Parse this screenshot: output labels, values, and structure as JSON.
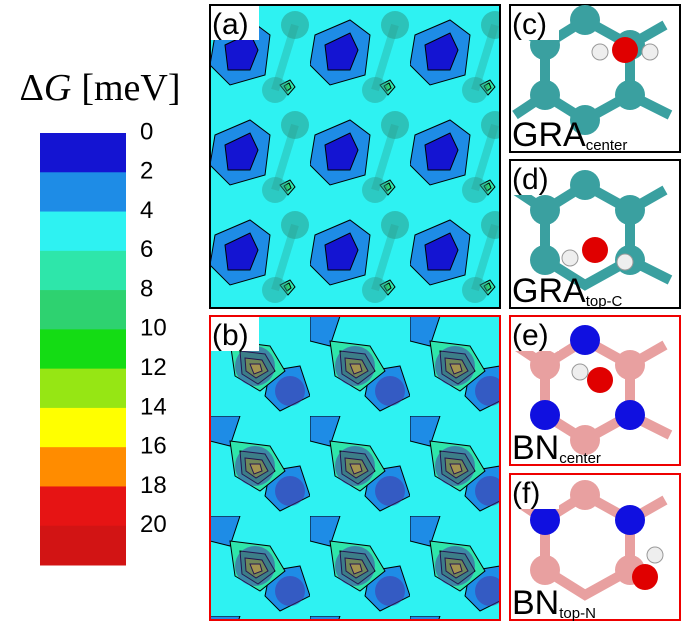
{
  "colorbar": {
    "delta": "Δ",
    "variable": "G",
    "unit": "[meV]",
    "range": [
      0,
      22
    ],
    "ticks": [
      0,
      2,
      4,
      6,
      8,
      10,
      12,
      14,
      16,
      18,
      20
    ],
    "colors": [
      "#1414d2",
      "#1e8ce6",
      "#2ef2f2",
      "#2ee6aa",
      "#2ed270",
      "#14dc14",
      "#96e614",
      "#ffff00",
      "#ff8c00",
      "#e61414",
      "#d21414"
    ]
  },
  "panels": [
    {
      "label": "(a)"
    },
    {
      "label": "(b)"
    },
    {
      "label": "(c)",
      "system": "GRA",
      "site": "center"
    },
    {
      "label": "(d)",
      "system": "GRA",
      "site": "top-C"
    },
    {
      "label": "(e)",
      "system": "BN",
      "site": "center"
    },
    {
      "label": "(f)",
      "system": "BN",
      "site": "top-N"
    }
  ]
}
